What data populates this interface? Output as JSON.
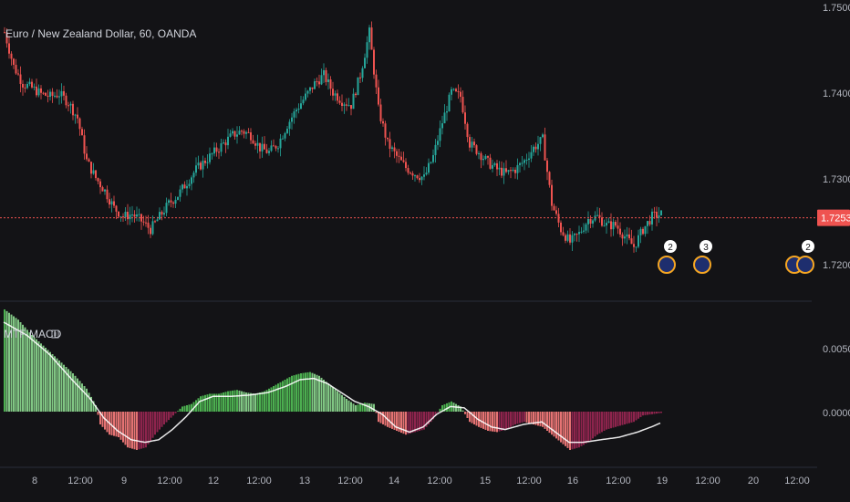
{
  "header": {
    "symbol_title": "Euro / New Zealand Dollar, 60, OANDA",
    "indicator_title": "MTF MACD"
  },
  "price_axis": {
    "ticks": [
      "1.75000",
      "1.74000",
      "1.73000",
      "1.72000"
    ],
    "current_price": "1.72536"
  },
  "macd_axis": {
    "ticks": [
      "0.00500",
      "0.00000"
    ]
  },
  "time_axis": {
    "ticks": [
      "8",
      "12:00",
      "9",
      "12:00",
      "12",
      "12:00",
      "13",
      "12:00",
      "14",
      "12:00",
      "15",
      "12:00",
      "16",
      "12:00",
      "19",
      "12:00",
      "20",
      "12:00"
    ]
  },
  "events": [
    {
      "badge": "2"
    },
    {
      "badge": "3"
    },
    {
      "badge": "2"
    }
  ],
  "colors": {
    "background": "#131316",
    "up": "#26a69a",
    "down": "#ef5350",
    "price_line": "#ef5350",
    "hist_pos_strong": "#4caf50",
    "hist_pos_weak": "#81c784",
    "hist_neg_strong": "#e57373",
    "hist_neg_weak": "#8e244d",
    "signal_line": "#ffffff"
  },
  "chart_data": [
    {
      "type": "candlestick",
      "title": "Euro / New Zealand Dollar, 60, OANDA",
      "ylim": [
        1.718,
        1.752
      ],
      "current_price": 1.72536,
      "close_path": [
        [
          0,
          1.747
        ],
        [
          4,
          1.743
        ],
        [
          8,
          1.741
        ],
        [
          12,
          1.7405
        ],
        [
          16,
          1.7398
        ],
        [
          20,
          1.7395
        ],
        [
          24,
          1.7398
        ],
        [
          28,
          1.7388
        ],
        [
          32,
          1.737
        ],
        [
          36,
          1.732
        ],
        [
          40,
          1.73
        ],
        [
          44,
          1.7285
        ],
        [
          48,
          1.7265
        ],
        [
          52,
          1.7255
        ],
        [
          56,
          1.7258
        ],
        [
          60,
          1.725
        ],
        [
          64,
          1.724
        ],
        [
          68,
          1.7255
        ],
        [
          72,
          1.727
        ],
        [
          76,
          1.728
        ],
        [
          80,
          1.7295
        ],
        [
          84,
          1.731
        ],
        [
          88,
          1.732
        ],
        [
          92,
          1.733
        ],
        [
          96,
          1.734
        ],
        [
          100,
          1.735
        ],
        [
          104,
          1.7355
        ],
        [
          108,
          1.735
        ],
        [
          112,
          1.7335
        ],
        [
          116,
          1.733
        ],
        [
          120,
          1.734
        ],
        [
          124,
          1.7362
        ],
        [
          128,
          1.738
        ],
        [
          132,
          1.7395
        ],
        [
          136,
          1.741
        ],
        [
          140,
          1.742
        ],
        [
          144,
          1.74
        ],
        [
          148,
          1.739
        ],
        [
          152,
          1.7385
        ],
        [
          156,
          1.742
        ],
        [
          160,
          1.747
        ],
        [
          164,
          1.738
        ],
        [
          168,
          1.734
        ],
        [
          172,
          1.7325
        ],
        [
          176,
          1.7312
        ],
        [
          180,
          1.7305
        ],
        [
          184,
          1.73
        ],
        [
          188,
          1.7325
        ],
        [
          192,
          1.7365
        ],
        [
          196,
          1.74
        ],
        [
          200,
          1.7395
        ],
        [
          204,
          1.734
        ],
        [
          208,
          1.733
        ],
        [
          212,
          1.7318
        ],
        [
          216,
          1.731
        ],
        [
          220,
          1.7305
        ],
        [
          224,
          1.731
        ],
        [
          228,
          1.732
        ],
        [
          232,
          1.7335
        ],
        [
          236,
          1.7345
        ],
        [
          240,
          1.727
        ],
        [
          244,
          1.724
        ],
        [
          248,
          1.7225
        ],
        [
          252,
          1.7235
        ],
        [
          256,
          1.7252
        ],
        [
          260,
          1.7255
        ],
        [
          264,
          1.7245
        ],
        [
          268,
          1.7245
        ],
        [
          272,
          1.7232
        ],
        [
          276,
          1.722
        ],
        [
          280,
          1.724
        ],
        [
          284,
          1.7255
        ],
        [
          288,
          1.7258
        ]
      ]
    },
    {
      "type": "bar",
      "title": "MTF MACD",
      "ylim": [
        -0.003,
        0.009
      ],
      "histogram_path": [
        [
          0,
          0.008
        ],
        [
          6,
          0.0072
        ],
        [
          12,
          0.006
        ],
        [
          18,
          0.005
        ],
        [
          24,
          0.004
        ],
        [
          30,
          0.003
        ],
        [
          36,
          0.0018
        ],
        [
          40,
          0.0005
        ],
        [
          42,
          -0.001
        ],
        [
          46,
          -0.0018
        ],
        [
          50,
          -0.002
        ],
        [
          54,
          -0.0028
        ],
        [
          58,
          -0.003
        ],
        [
          62,
          -0.0028
        ],
        [
          66,
          -0.0018
        ],
        [
          70,
          -0.001
        ],
        [
          74,
          -0.0003
        ],
        [
          78,
          0.0004
        ],
        [
          82,
          0.0006
        ],
        [
          86,
          0.0012
        ],
        [
          90,
          0.0014
        ],
        [
          94,
          0.0014
        ],
        [
          98,
          0.0016
        ],
        [
          102,
          0.0017
        ],
        [
          106,
          0.0015
        ],
        [
          110,
          0.0014
        ],
        [
          114,
          0.0016
        ],
        [
          118,
          0.002
        ],
        [
          122,
          0.0024
        ],
        [
          126,
          0.0028
        ],
        [
          130,
          0.003
        ],
        [
          134,
          0.0031
        ],
        [
          138,
          0.0028
        ],
        [
          142,
          0.0022
        ],
        [
          146,
          0.0016
        ],
        [
          150,
          0.001
        ],
        [
          154,
          0.0005
        ],
        [
          158,
          0.0007
        ],
        [
          162,
          0.0006
        ],
        [
          164,
          -0.0008
        ],
        [
          168,
          -0.0012
        ],
        [
          172,
          -0.0015
        ],
        [
          176,
          -0.0018
        ],
        [
          180,
          -0.0016
        ],
        [
          184,
          -0.0014
        ],
        [
          188,
          -0.0006
        ],
        [
          192,
          0.0005
        ],
        [
          196,
          0.0008
        ],
        [
          200,
          0.0004
        ],
        [
          204,
          -0.0008
        ],
        [
          208,
          -0.0012
        ],
        [
          212,
          -0.0015
        ],
        [
          216,
          -0.0016
        ],
        [
          220,
          -0.0014
        ],
        [
          224,
          -0.001
        ],
        [
          228,
          -0.0008
        ],
        [
          232,
          -0.001
        ],
        [
          236,
          -0.0012
        ],
        [
          240,
          -0.0018
        ],
        [
          244,
          -0.0024
        ],
        [
          248,
          -0.003
        ],
        [
          252,
          -0.0028
        ],
        [
          256,
          -0.0024
        ],
        [
          260,
          -0.0018
        ],
        [
          264,
          -0.0014
        ],
        [
          268,
          -0.0012
        ],
        [
          272,
          -0.001
        ],
        [
          276,
          -0.0008
        ],
        [
          280,
          -0.0003
        ],
        [
          284,
          -0.0002
        ],
        [
          288,
          -0.0001
        ]
      ],
      "signal_path": [
        [
          0,
          0.007
        ],
        [
          10,
          0.006
        ],
        [
          20,
          0.0045
        ],
        [
          30,
          0.0025
        ],
        [
          38,
          0.001
        ],
        [
          44,
          -0.0005
        ],
        [
          50,
          -0.0015
        ],
        [
          56,
          -0.0022
        ],
        [
          62,
          -0.0024
        ],
        [
          68,
          -0.0022
        ],
        [
          74,
          -0.0014
        ],
        [
          80,
          -0.0004
        ],
        [
          86,
          0.0008
        ],
        [
          92,
          0.0012
        ],
        [
          100,
          0.0012
        ],
        [
          108,
          0.0013
        ],
        [
          116,
          0.0015
        ],
        [
          124,
          0.002
        ],
        [
          130,
          0.0025
        ],
        [
          136,
          0.0026
        ],
        [
          142,
          0.0022
        ],
        [
          148,
          0.0015
        ],
        [
          154,
          0.0008
        ],
        [
          160,
          0.0004
        ],
        [
          166,
          -0.0002
        ],
        [
          172,
          -0.0012
        ],
        [
          178,
          -0.0016
        ],
        [
          184,
          -0.0012
        ],
        [
          190,
          -0.0002
        ],
        [
          196,
          0.0004
        ],
        [
          202,
          0.0003
        ],
        [
          208,
          -0.0006
        ],
        [
          214,
          -0.0012
        ],
        [
          220,
          -0.0014
        ],
        [
          228,
          -0.001
        ],
        [
          236,
          -0.0008
        ],
        [
          242,
          -0.0016
        ],
        [
          248,
          -0.0024
        ],
        [
          254,
          -0.0024
        ],
        [
          262,
          -0.0022
        ],
        [
          270,
          -0.002
        ],
        [
          278,
          -0.0016
        ],
        [
          284,
          -0.0012
        ],
        [
          288,
          -0.0009
        ]
      ]
    }
  ]
}
